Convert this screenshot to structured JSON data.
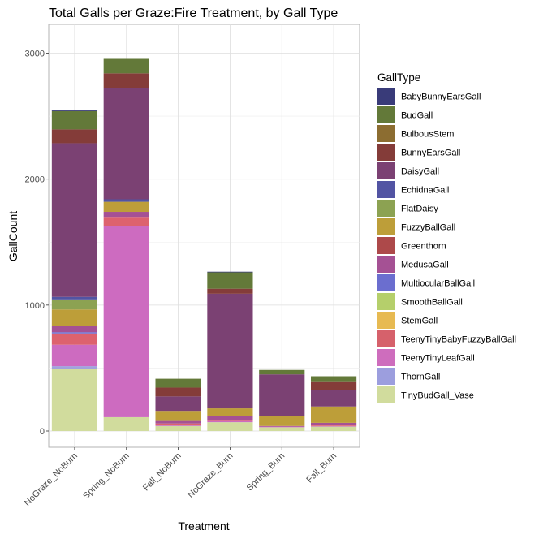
{
  "chart_data": {
    "type": "bar",
    "stacked": true,
    "title": "Total Galls per Graze:Fire Treatment, by Gall Type",
    "xlabel": "Treatment",
    "ylabel": "GallCount",
    "ylim": [
      0,
      3100
    ],
    "yticks": [
      0,
      1000,
      2000,
      3000
    ],
    "grid": true,
    "legend_position": "right",
    "legend_title": "GallType",
    "categories": [
      "NoGraze_NoBurn",
      "Spring_NoBurn",
      "Fall_NoBurn",
      "NoGraze_Burn",
      "Spring_Burn",
      "Fall_Burn"
    ],
    "series": [
      {
        "name": "TinyBudGall_Vase",
        "color": "#d1dc9d",
        "values": [
          490,
          110,
          40,
          70,
          30,
          35
        ]
      },
      {
        "name": "ThornGall",
        "color": "#a2a3dd",
        "values": [
          25,
          0,
          0,
          0,
          0,
          0
        ]
      },
      {
        "name": "TeenyTinyLeafGall",
        "color": "#cd6bc0",
        "values": [
          170,
          1520,
          10,
          10,
          5,
          5
        ]
      },
      {
        "name": "TeenyTinyBabyFuzzyBallGall",
        "color": "#dd626e",
        "values": [
          90,
          70,
          10,
          10,
          0,
          10
        ]
      },
      {
        "name": "StemGall",
        "color": "#e6b653",
        "values": [
          0,
          0,
          0,
          0,
          0,
          0
        ]
      },
      {
        "name": "SmoothBallGall",
        "color": "#b5cf6b",
        "values": [
          0,
          0,
          0,
          0,
          0,
          0
        ]
      },
      {
        "name": "MulticularBallGall",
        "color": "#6c6fd4",
        "values": [
          10,
          0,
          0,
          0,
          0,
          0
        ]
      },
      {
        "name": "MedusaGall",
        "color": "#a55194",
        "values": [
          50,
          40,
          20,
          30,
          5,
          15
        ]
      },
      {
        "name": "Greenthorn",
        "color": "#ad494a",
        "values": [
          0,
          0,
          0,
          0,
          0,
          0
        ]
      },
      {
        "name": "FuzzyBallGall",
        "color": "#bd9e39",
        "values": [
          130,
          80,
          80,
          60,
          80,
          130
        ]
      },
      {
        "name": "FlatDaisy",
        "color": "#8ca252",
        "values": [
          80,
          0,
          0,
          0,
          0,
          0
        ]
      },
      {
        "name": "EchidnaGall",
        "color": "#5254a3",
        "values": [
          20,
          20,
          0,
          0,
          0,
          0
        ]
      },
      {
        "name": "DaisyGall",
        "color": "#7b4173",
        "values": [
          1220,
          880,
          115,
          910,
          330,
          130
        ]
      },
      {
        "name": "BunnyEarsGall",
        "color": "#843c39",
        "values": [
          110,
          120,
          70,
          40,
          0,
          70
        ]
      },
      {
        "name": "BulbousStem",
        "color": "#8c6d31",
        "values": [
          0,
          0,
          0,
          0,
          0,
          0
        ]
      },
      {
        "name": "BudGall",
        "color": "#637939",
        "values": [
          145,
          115,
          70,
          130,
          35,
          40
        ]
      },
      {
        "name": "BabyBunnyEarsGall",
        "color": "#393b79",
        "values": [
          10,
          0,
          0,
          5,
          0,
          0
        ]
      }
    ],
    "legend_order": [
      "BabyBunnyEarsGall",
      "BudGall",
      "BulbousStem",
      "BunnyEarsGall",
      "DaisyGall",
      "EchidnaGall",
      "FlatDaisy",
      "FuzzyBallGall",
      "Greenthorn",
      "MedusaGall",
      "MultiocularBallGall",
      "SmoothBallGall",
      "StemGall",
      "TeenyTinyBabyFuzzyBallGall",
      "TeenyTinyLeafGall",
      "ThornGall",
      "TinyBudGall_Vase"
    ],
    "legend_colors": {
      "BabyBunnyEarsGall": "#393b79",
      "BudGall": "#637939",
      "BulbousStem": "#8c6d31",
      "BunnyEarsGall": "#843c39",
      "DaisyGall": "#7b4173",
      "EchidnaGall": "#5254a3",
      "FlatDaisy": "#8ca252",
      "FuzzyBallGall": "#bd9e39",
      "Greenthorn": "#ad494a",
      "MedusaGall": "#a55194",
      "MultiocularBallGall": "#6b6ecf",
      "SmoothBallGall": "#b5cf6b",
      "StemGall": "#e7ba52",
      "TeenyTinyBabyFuzzyBallGall": "#d6616b",
      "TeenyTinyLeafGall": "#ce6dbd",
      "ThornGall": "#9c9ede",
      "TinyBudGall_Vase": "#d1dc9d"
    }
  }
}
